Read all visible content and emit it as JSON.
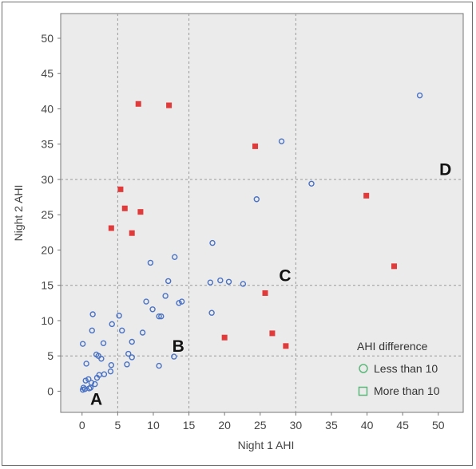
{
  "chart_data": {
    "type": "scatter",
    "xlabel": "Night 1 AHI",
    "ylabel": "Night 2 AHI",
    "xlim": [
      -3,
      53.5
    ],
    "ylim": [
      -3,
      53.5
    ],
    "xticks": [
      "0",
      "5",
      "10",
      "15",
      "20",
      "25",
      "30",
      "35",
      "40",
      "45",
      "50"
    ],
    "yticks": [
      "0",
      "5",
      "10",
      "15",
      "20",
      "25",
      "30",
      "35",
      "40",
      "45",
      "50"
    ],
    "grid": "dashed reference lines at 5, 15 and 30",
    "reference_lines": [
      5,
      15,
      30
    ],
    "region_labels": [
      {
        "text": "A",
        "x": 2,
        "y": -1
      },
      {
        "text": "B",
        "x": 13.5,
        "y": 6.5
      },
      {
        "text": "C",
        "x": 28.5,
        "y": 16.5
      },
      {
        "text": "D",
        "x": 51,
        "y": 31.5
      }
    ],
    "legend": {
      "title": "AHI difference",
      "position": "bottom-right",
      "entries": [
        "Less than 10",
        "More than 10"
      ]
    },
    "colors": {
      "less_than_10": "#4a72c4",
      "more_than_10": "#e03a3a",
      "legend_marker": "#5cb87a",
      "plot_background": "#ebebeb"
    },
    "series": [
      {
        "name": "Less than 10",
        "marker": "circle",
        "points": [
          [
            0.1,
            0.2
          ],
          [
            0.2,
            0.5
          ],
          [
            0.4,
            0.3
          ],
          [
            0.5,
            1.5
          ],
          [
            0.6,
            3.9
          ],
          [
            0.9,
            1.7
          ],
          [
            1.0,
            0.4
          ],
          [
            1.2,
            0.5
          ],
          [
            1.3,
            1.2
          ],
          [
            1.4,
            8.6
          ],
          [
            1.5,
            10.9
          ],
          [
            1.8,
            1.0
          ],
          [
            2.0,
            5.2
          ],
          [
            2.1,
            1.9
          ],
          [
            2.3,
            5.0
          ],
          [
            2.4,
            2.3
          ],
          [
            2.7,
            4.6
          ],
          [
            3.0,
            6.8
          ],
          [
            3.1,
            2.4
          ],
          [
            0.1,
            6.7
          ],
          [
            4.0,
            2.8
          ],
          [
            4.1,
            3.7
          ],
          [
            4.2,
            9.5
          ],
          [
            5.2,
            10.7
          ],
          [
            5.6,
            8.6
          ],
          [
            6.3,
            3.8
          ],
          [
            6.5,
            5.3
          ],
          [
            7.0,
            4.8
          ],
          [
            7.0,
            7.0
          ],
          [
            8.5,
            8.3
          ],
          [
            9.0,
            12.7
          ],
          [
            9.6,
            18.2
          ],
          [
            9.9,
            11.6
          ],
          [
            10.8,
            3.6
          ],
          [
            10.8,
            10.6
          ],
          [
            11.1,
            10.6
          ],
          [
            11.7,
            13.5
          ],
          [
            12.1,
            15.6
          ],
          [
            12.9,
            4.9
          ],
          [
            13.0,
            19.0
          ],
          [
            13.6,
            12.5
          ],
          [
            14.0,
            12.7
          ],
          [
            18.0,
            15.4
          ],
          [
            18.2,
            11.1
          ],
          [
            18.3,
            21.0
          ],
          [
            19.4,
            15.7
          ],
          [
            20.6,
            15.5
          ],
          [
            22.6,
            15.2
          ],
          [
            24.5,
            27.2
          ],
          [
            28.0,
            35.4
          ],
          [
            32.2,
            29.4
          ],
          [
            47.4,
            41.9
          ]
        ]
      },
      {
        "name": "More than 10",
        "marker": "square",
        "points": [
          [
            4.1,
            23.1
          ],
          [
            5.4,
            28.6
          ],
          [
            6.0,
            25.9
          ],
          [
            7.0,
            22.4
          ],
          [
            7.9,
            40.7
          ],
          [
            8.2,
            25.4
          ],
          [
            12.2,
            40.5
          ],
          [
            20.0,
            7.6
          ],
          [
            24.3,
            34.7
          ],
          [
            25.7,
            13.9
          ],
          [
            26.7,
            8.2
          ],
          [
            28.6,
            6.4
          ],
          [
            39.9,
            27.7
          ],
          [
            43.8,
            17.7
          ]
        ]
      }
    ]
  }
}
